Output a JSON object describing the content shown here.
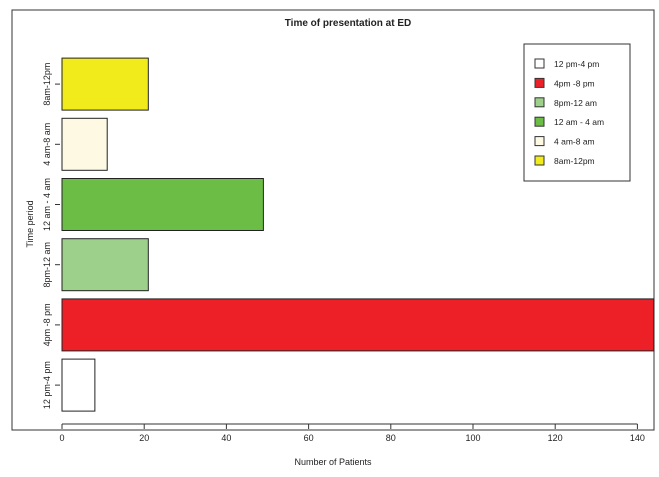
{
  "chart_data": {
    "type": "bar",
    "orientation": "horizontal",
    "title": "Time of presentation at ED",
    "xlabel": "Number of Patients",
    "ylabel": "Time period",
    "xlim": [
      0,
      145
    ],
    "x_ticks": [
      0,
      20,
      40,
      60,
      80,
      100,
      120,
      140
    ],
    "categories": [
      "12 pm-4 pm",
      "4pm -8 pm",
      "8pm-12 am",
      "12 am - 4 am",
      "4 am-8 am",
      "8am-12pm"
    ],
    "values": [
      8,
      144,
      21,
      49,
      11,
      21
    ],
    "colors": [
      "#ffffff",
      "#ee2027",
      "#9dd08a",
      "#6bbd45",
      "#fdf9e3",
      "#f2eb1c"
    ],
    "grid": false,
    "legend": {
      "position": "top-right",
      "entries": [
        {
          "label": "12 pm-4 pm",
          "color": "#ffffff"
        },
        {
          "label": "4pm -8 pm",
          "color": "#ee2027"
        },
        {
          "label": "8pm-12 am",
          "color": "#9dd08a"
        },
        {
          "label": "12 am - 4 am",
          "color": "#6bbd45"
        },
        {
          "label": "4 am-8 am",
          "color": "#fdf9e3"
        },
        {
          "label": "8am-12pm",
          "color": "#f2eb1c"
        }
      ]
    }
  }
}
